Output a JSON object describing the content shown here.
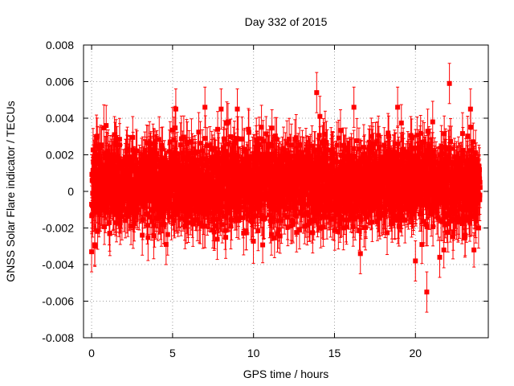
{
  "chart_data": {
    "type": "scatter",
    "title": "Day 332 of 2015",
    "xlabel": "GPS time / hours",
    "ylabel": "GNSS Solar Flare indicator / TECUs",
    "xlim": [
      -0.5,
      24.5
    ],
    "ylim": [
      -0.008,
      0.008
    ],
    "x_ticks": [
      "0",
      "5",
      "10",
      "15",
      "20"
    ],
    "x_tick_values": [
      0,
      5,
      10,
      15,
      20
    ],
    "y_ticks": [
      "0.008",
      "0.006",
      "0.004",
      "0.002",
      "0",
      "-0.002",
      "-0.004",
      "-0.006",
      "-0.008"
    ],
    "y_tick_values": [
      0.008,
      0.006,
      0.004,
      0.002,
      0,
      -0.002,
      -0.004,
      -0.006,
      -0.008
    ],
    "grid": true,
    "legend": "none",
    "series_color": "#ff0000",
    "error_bars": true,
    "error_magnitude": 0.0011,
    "sampling_interval_hours": 0.0083,
    "noise": {
      "mean": 0.0004,
      "spread": 0.0011
    },
    "outliers": [
      {
        "x": 0.0,
        "y": -0.0033
      },
      {
        "x": 0.2,
        "y": -0.003
      },
      {
        "x": 0.9,
        "y": 0.0036
      },
      {
        "x": 4.6,
        "y": -0.0029
      },
      {
        "x": 5.2,
        "y": 0.0045
      },
      {
        "x": 7.0,
        "y": 0.0046
      },
      {
        "x": 8.0,
        "y": 0.0045
      },
      {
        "x": 9.0,
        "y": 0.0045
      },
      {
        "x": 13.9,
        "y": 0.0054
      },
      {
        "x": 14.1,
        "y": 0.0041
      },
      {
        "x": 16.2,
        "y": 0.0046
      },
      {
        "x": 16.6,
        "y": -0.0034
      },
      {
        "x": 18.9,
        "y": 0.0046
      },
      {
        "x": 20.0,
        "y": -0.0038
      },
      {
        "x": 20.7,
        "y": -0.0055
      },
      {
        "x": 21.5,
        "y": -0.0036
      },
      {
        "x": 22.1,
        "y": 0.0059
      },
      {
        "x": 23.4,
        "y": 0.0045
      },
      {
        "x": 23.9,
        "y": -0.002
      }
    ]
  }
}
